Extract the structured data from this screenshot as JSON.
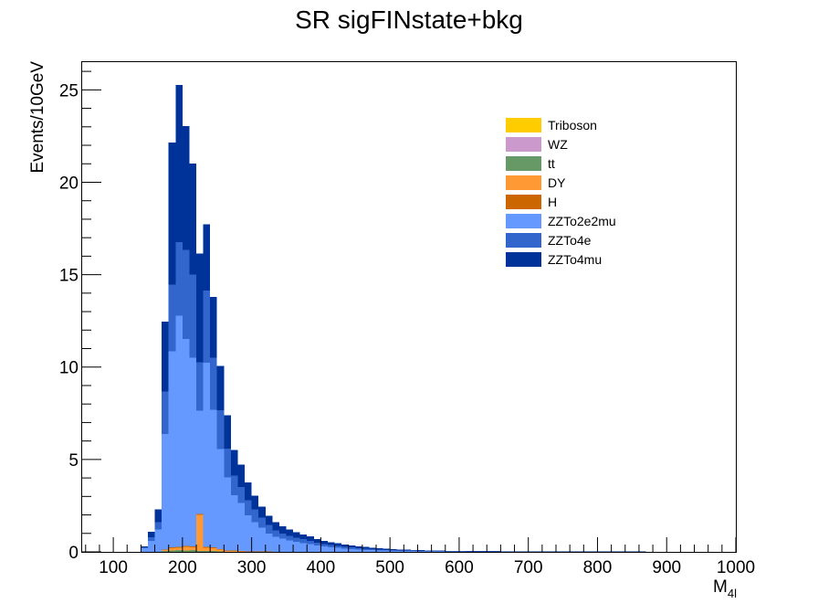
{
  "chart_data": {
    "type": "bar",
    "stacked": true,
    "title": "SR sigFINstate+bkg",
    "xlabel": "M",
    "xlabel_sub": "4l",
    "ylabel": "Events/10GeV",
    "xlim": [
      55,
      1000
    ],
    "ylim": [
      0,
      26.5
    ],
    "bin_width": 10,
    "x_ticks": [
      "100",
      "200",
      "300",
      "400",
      "500",
      "600",
      "700",
      "800",
      "900",
      "1000"
    ],
    "y_ticks": [
      "0",
      "5",
      "10",
      "15",
      "20",
      "25"
    ],
    "x_tick_values": [
      100,
      200,
      300,
      400,
      500,
      600,
      700,
      800,
      900,
      1000
    ],
    "y_tick_values": [
      0,
      5,
      10,
      15,
      20,
      25
    ],
    "legend_position": "top-right",
    "x": [
      145,
      155,
      165,
      175,
      185,
      195,
      205,
      215,
      225,
      235,
      245,
      255,
      265,
      275,
      285,
      295,
      305,
      315,
      325,
      335,
      345,
      355,
      365,
      375,
      385,
      395,
      405,
      415,
      425,
      435,
      445,
      455,
      465,
      475,
      485,
      495,
      505,
      515,
      525,
      535,
      545,
      555,
      565,
      575,
      585,
      595,
      605,
      615,
      625,
      635,
      645,
      655,
      665,
      675,
      685,
      695,
      705,
      715,
      725,
      735,
      745,
      755,
      765,
      775,
      785,
      795,
      805,
      815,
      825,
      835,
      845,
      855,
      865
    ],
    "series": [
      {
        "name": "Triboson",
        "color": "#ffcc00",
        "values": [
          0,
          0,
          0,
          0,
          0,
          0,
          0,
          0,
          0,
          0,
          0,
          0,
          0,
          0,
          0,
          0,
          0,
          0,
          0,
          0,
          0,
          0,
          0,
          0,
          0,
          0,
          0,
          0,
          0,
          0,
          0,
          0,
          0,
          0,
          0,
          0,
          0,
          0,
          0,
          0,
          0,
          0,
          0,
          0,
          0,
          0,
          0,
          0,
          0,
          0,
          0,
          0,
          0,
          0,
          0,
          0,
          0,
          0,
          0,
          0,
          0,
          0,
          0,
          0,
          0,
          0,
          0,
          0,
          0,
          0,
          0,
          0,
          0
        ]
      },
      {
        "name": "WZ",
        "color": "#cc99cc",
        "values": [
          0,
          0,
          0,
          0,
          0,
          0,
          0,
          0,
          0,
          0,
          0,
          0,
          0,
          0,
          0,
          0,
          0,
          0,
          0,
          0,
          0,
          0,
          0,
          0,
          0,
          0,
          0,
          0,
          0,
          0,
          0,
          0,
          0,
          0,
          0,
          0,
          0,
          0,
          0,
          0,
          0,
          0,
          0,
          0,
          0,
          0,
          0,
          0,
          0,
          0,
          0,
          0,
          0,
          0,
          0,
          0,
          0,
          0,
          0,
          0,
          0,
          0,
          0,
          0,
          0,
          0,
          0,
          0,
          0,
          0,
          0,
          0,
          0
        ]
      },
      {
        "name": "tt",
        "color": "#669966",
        "values": [
          0,
          0,
          0,
          0.05,
          0.08,
          0.1,
          0.08,
          0.1,
          0.05,
          0.05,
          0.05,
          0.03,
          0,
          0,
          0,
          0,
          0,
          0,
          0,
          0,
          0,
          0,
          0,
          0,
          0,
          0,
          0,
          0,
          0,
          0,
          0,
          0,
          0,
          0,
          0,
          0,
          0,
          0,
          0,
          0,
          0,
          0,
          0,
          0,
          0,
          0,
          0,
          0,
          0,
          0,
          0,
          0,
          0,
          0,
          0,
          0,
          0,
          0,
          0,
          0,
          0,
          0,
          0,
          0,
          0,
          0,
          0,
          0,
          0,
          0,
          0,
          0,
          0
        ]
      },
      {
        "name": "DY",
        "color": "#ff9933",
        "values": [
          0,
          0,
          0,
          0.05,
          0.12,
          0.12,
          0.2,
          0.15,
          1.95,
          0.18,
          0.15,
          0.1,
          0.05,
          0.05,
          0.03,
          0,
          0,
          0,
          0,
          0,
          0,
          0,
          0,
          0,
          0,
          0,
          0,
          0,
          0,
          0,
          0,
          0,
          0,
          0,
          0,
          0,
          0,
          0,
          0,
          0,
          0,
          0,
          0,
          0,
          0,
          0,
          0,
          0,
          0,
          0,
          0,
          0,
          0,
          0,
          0,
          0,
          0,
          0,
          0,
          0,
          0,
          0,
          0,
          0,
          0,
          0,
          0,
          0,
          0,
          0,
          0,
          0,
          0
        ]
      },
      {
        "name": "H",
        "color": "#cc6600",
        "values": [
          0,
          0,
          0,
          0.02,
          0.05,
          0.05,
          0.05,
          0.05,
          0.05,
          0.05,
          0.05,
          0.03,
          0.03,
          0.02,
          0.02,
          0.02,
          0.02,
          0.02,
          0.02,
          0,
          0,
          0,
          0,
          0,
          0,
          0,
          0,
          0,
          0,
          0,
          0,
          0,
          0,
          0,
          0,
          0,
          0,
          0,
          0,
          0,
          0,
          0,
          0,
          0,
          0,
          0,
          0,
          0,
          0,
          0,
          0,
          0,
          0,
          0,
          0,
          0,
          0,
          0,
          0,
          0,
          0,
          0,
          0,
          0,
          0,
          0,
          0,
          0,
          0,
          0,
          0,
          0,
          0
        ]
      },
      {
        "name": "ZZTo2e2mu",
        "color": "#6699ff",
        "values": [
          0.2,
          0.6,
          1.2,
          6.25,
          10.6,
          12.5,
          11.2,
          10.2,
          5.6,
          9.95,
          7.45,
          5.4,
          3.95,
          3.0,
          2.6,
          1.96,
          1.58,
          1.28,
          0.98,
          0.82,
          0.72,
          0.62,
          0.55,
          0.48,
          0.42,
          0.35,
          0.3,
          0.25,
          0.22,
          0.18,
          0.16,
          0.13,
          0.11,
          0.1,
          0.08,
          0.07,
          0.06,
          0.05,
          0.05,
          0.04,
          0.04,
          0.03,
          0.03,
          0.03,
          0.02,
          0.02,
          0.02,
          0.02,
          0.02,
          0.02,
          0.02,
          0.02,
          0.01,
          0.01,
          0.01,
          0.01,
          0.01,
          0.01,
          0.01,
          0.01,
          0.01,
          0.01,
          0.01,
          0.01,
          0.01,
          0.01,
          0.01,
          0.01,
          0.01,
          0.01,
          0.01,
          0.01,
          0.01
        ]
      },
      {
        "name": "ZZTo4e",
        "color": "#3366cc",
        "values": [
          0.05,
          0.2,
          0.4,
          2.3,
          3.6,
          4.0,
          4.8,
          4.5,
          2.6,
          3.9,
          2.8,
          2.1,
          1.55,
          1.05,
          0.87,
          0.82,
          0.7,
          0.55,
          0.45,
          0.34,
          0.26,
          0.24,
          0.22,
          0.2,
          0.17,
          0.14,
          0.12,
          0.11,
          0.1,
          0.09,
          0.08,
          0.07,
          0.06,
          0.05,
          0.04,
          0.04,
          0.03,
          0.03,
          0.03,
          0.03,
          0.02,
          0.02,
          0.02,
          0.02,
          0.02,
          0.02,
          0.02,
          0.01,
          0.01,
          0.01,
          0.01,
          0.01,
          0.01,
          0.01,
          0.01,
          0.01,
          0.01,
          0.01,
          0.01,
          0.01,
          0.01,
          0.01,
          0.01,
          0.01,
          0.01,
          0.01,
          0.01,
          0.01,
          0.01,
          0.01,
          0.01,
          0.01,
          0.01
        ]
      },
      {
        "name": "ZZTo4mu",
        "color": "#003399",
        "values": [
          0.05,
          0.3,
          0.7,
          3.8,
          7.7,
          8.5,
          6.7,
          6.0,
          5.9,
          3.6,
          3.3,
          2.4,
          1.8,
          1.4,
          1.2,
          0.95,
          0.75,
          0.6,
          0.5,
          0.44,
          0.4,
          0.34,
          0.3,
          0.27,
          0.24,
          0.21,
          0.18,
          0.16,
          0.14,
          0.12,
          0.11,
          0.1,
          0.09,
          0.08,
          0.07,
          0.06,
          0.06,
          0.05,
          0.04,
          0.04,
          0.03,
          0.03,
          0.03,
          0.03,
          0.02,
          0.02,
          0.02,
          0.02,
          0.02,
          0.02,
          0.02,
          0.01,
          0.01,
          0.01,
          0.01,
          0.01,
          0.01,
          0.01,
          0.01,
          0.01,
          0.01,
          0.01,
          0.01,
          0.01,
          0.01,
          0.01,
          0.01,
          0.01,
          0.01,
          0.01,
          0.01,
          0.01,
          0.01
        ]
      }
    ]
  }
}
